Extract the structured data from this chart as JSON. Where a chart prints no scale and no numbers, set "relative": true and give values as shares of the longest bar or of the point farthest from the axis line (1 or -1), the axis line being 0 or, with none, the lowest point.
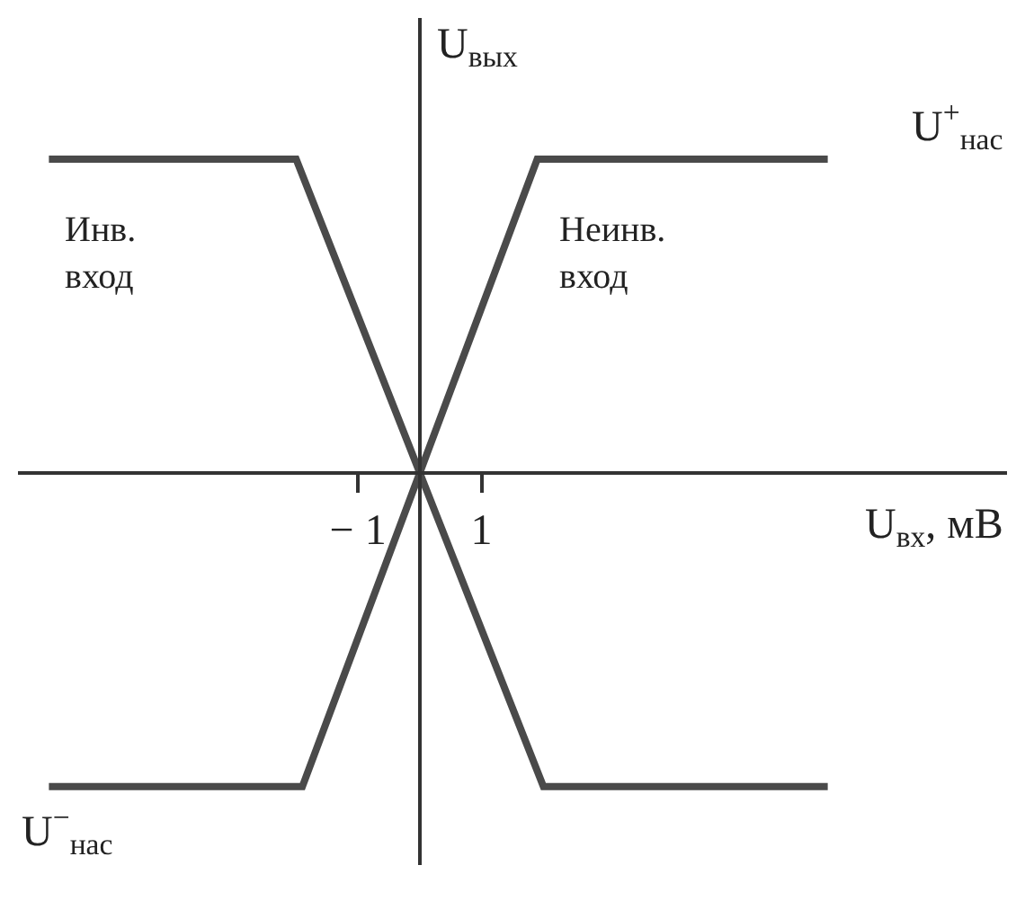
{
  "chart_data": {
    "type": "line",
    "relative": true,
    "xlabel": "U$_{вх}$, мВ",
    "ylabel": "U$_{вых}$",
    "xlim": [
      -6.5,
      9.5
    ],
    "xticks": [
      {
        "value": -1,
        "label": "− 1"
      },
      1
    ],
    "series": [
      {
        "name": "Инв. вход",
        "color": "#4a4a4a",
        "x": [
          -6,
          -2,
          2,
          6.6
        ],
        "values": [
          1,
          1,
          -1,
          -1
        ]
      },
      {
        "name": "Неинв. вход",
        "color": "#4a4a4a",
        "x": [
          -6,
          -1.9,
          1.9,
          6.6
        ],
        "values": [
          -1,
          -1,
          1,
          1
        ]
      }
    ],
    "annotations": [
      "U$^{+}$$_{нас}$",
      "U$^{−}$$_{нас}$"
    ],
    "grid": false,
    "legend": false,
    "marker": "none",
    "line_style": "solid"
  }
}
